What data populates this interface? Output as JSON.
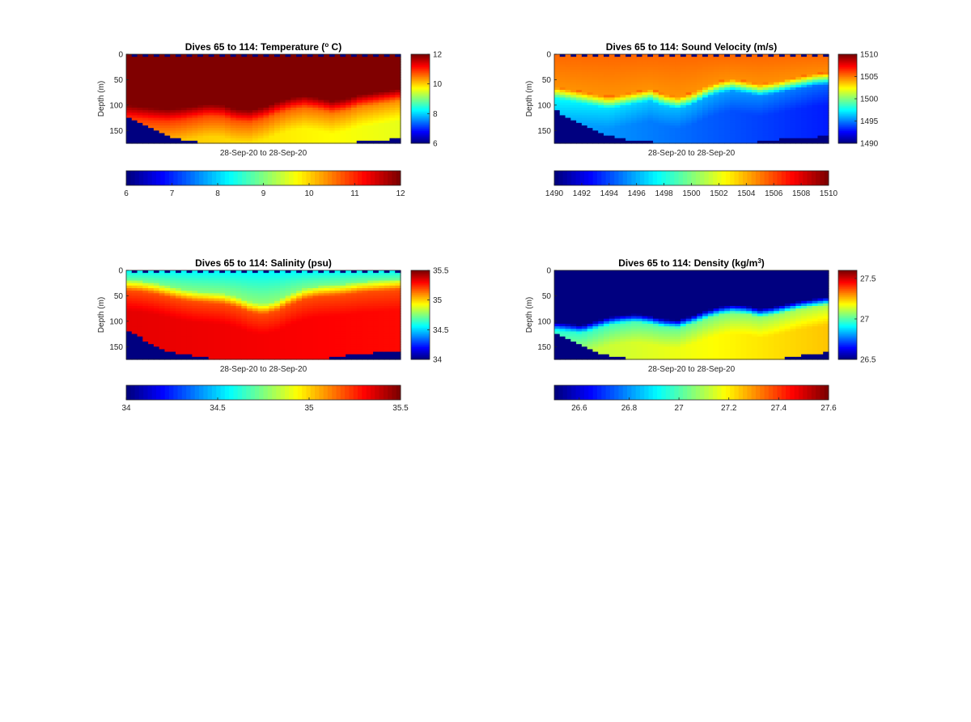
{
  "chart_data": [
    {
      "type": "heatmap",
      "title_parts": [
        "Dives 65 to 114: Temperature (",
        "o",
        " C)"
      ],
      "xlabel": "28-Sep-20 to 28-Sep-20",
      "ylabel": "Depth (m)",
      "ylim": [
        0,
        175
      ],
      "y_ticks": [
        "0",
        "50",
        "100",
        "150"
      ],
      "y_tick_values": [
        0,
        50,
        100,
        150
      ],
      "clim": [
        6,
        12
      ],
      "colorbar_vertical_ticks": [
        "6",
        "8",
        "10",
        "12"
      ],
      "colorbar_vertical_values": [
        6,
        8,
        10,
        12
      ],
      "colorbar_horizontal_ticks": [
        "6",
        "7",
        "8",
        "9",
        "10",
        "11",
        "12"
      ],
      "colorbar_horizontal_values": [
        6,
        7,
        8,
        9,
        10,
        11,
        12
      ],
      "colormap": "jet",
      "profile": {
        "top_layer": [
          12,
          11.8
        ],
        "surface_value": 12,
        "thermocline_depth": [
          112,
          115,
          118,
          120,
          118,
          114,
          110,
          112,
          120,
          122,
          116,
          106,
          98,
          94,
          98,
          104,
          100,
          92,
          88,
          84,
          80
        ],
        "deep_value": [
          10.2,
          9.6
        ],
        "bottom_depth": [
          120,
          135,
          150,
          162,
          168,
          172,
          175,
          175,
          175,
          175,
          175,
          175,
          175,
          175,
          175,
          175,
          175,
          172,
          170,
          168,
          165
        ]
      }
    },
    {
      "type": "heatmap",
      "title_parts": [
        "Dives 65 to 114: Sound Velocity (m/s)"
      ],
      "xlabel": "28-Sep-20 to 28-Sep-20",
      "ylabel": "Depth (m)",
      "ylim": [
        0,
        175
      ],
      "y_ticks": [
        "0",
        "50",
        "100",
        "150"
      ],
      "y_tick_values": [
        0,
        50,
        100,
        150
      ],
      "clim": [
        1490,
        1510
      ],
      "colorbar_vertical_ticks": [
        "1490",
        "1495",
        "1500",
        "1505",
        "1510"
      ],
      "colorbar_vertical_values": [
        1490,
        1495,
        1500,
        1505,
        1510
      ],
      "colorbar_horizontal_ticks": [
        "1490",
        "1492",
        "1494",
        "1496",
        "1498",
        "1500",
        "1502",
        "1504",
        "1506",
        "1508",
        "1510"
      ],
      "colorbar_horizontal_values": [
        1490,
        1492,
        1494,
        1496,
        1498,
        1500,
        1502,
        1504,
        1506,
        1508,
        1510
      ],
      "colormap": "jet",
      "profile": {
        "surface_value": 1505.5,
        "thermocline_depth": [
          75,
          80,
          85,
          90,
          95,
          90,
          85,
          80,
          90,
          95,
          88,
          75,
          65,
          60,
          65,
          70,
          66,
          60,
          55,
          50,
          48
        ],
        "deep_value": [
          1496,
          1493
        ],
        "bottom_depth": [
          108,
          125,
          140,
          152,
          160,
          166,
          170,
          172,
          175,
          175,
          175,
          175,
          175,
          175,
          175,
          172,
          168,
          166,
          165,
          163,
          160
        ]
      }
    },
    {
      "type": "heatmap",
      "title_parts": [
        "Dives 65 to 114: Salinity (psu)"
      ],
      "xlabel": "28-Sep-20 to 28-Sep-20",
      "ylabel": "Depth (m)",
      "ylim": [
        0,
        175
      ],
      "y_ticks": [
        "0",
        "50",
        "100",
        "150"
      ],
      "y_tick_values": [
        0,
        50,
        100,
        150
      ],
      "clim": [
        34,
        35.5
      ],
      "colorbar_vertical_ticks": [
        "34",
        "34.5",
        "35",
        "35.5"
      ],
      "colorbar_vertical_values": [
        34,
        34.5,
        35,
        35.5
      ],
      "colorbar_horizontal_ticks": [
        "34",
        "34.5",
        "35",
        "35.5"
      ],
      "colorbar_horizontal_values": [
        34,
        34.5,
        35,
        35.5
      ],
      "colormap": "jet",
      "profile": {
        "surface_value": 34.55,
        "thermocline_depth": [
          28,
          30,
          34,
          40,
          46,
          50,
          52,
          54,
          60,
          70,
          75,
          68,
          55,
          45,
          40,
          38,
          36,
          32,
          30,
          28,
          26
        ],
        "mid_value": 35.2,
        "deep_value": [
          35.35,
          35.3
        ],
        "bottom_depth": [
          118,
          132,
          148,
          158,
          164,
          168,
          172,
          175,
          175,
          175,
          175,
          175,
          175,
          175,
          175,
          172,
          168,
          165,
          162,
          160,
          158
        ]
      }
    },
    {
      "type": "heatmap",
      "title_parts": [
        "Dives 65 to 114: Density (kg/m",
        "3",
        ")"
      ],
      "xlabel": "28-Sep-20 to 28-Sep-20",
      "ylabel": "Depth (m)",
      "ylim": [
        0,
        175
      ],
      "y_ticks": [
        "0",
        "50",
        "100",
        "150"
      ],
      "y_tick_values": [
        0,
        50,
        100,
        150
      ],
      "clim": [
        26.5,
        27.6
      ],
      "colorbar_vertical_ticks": [
        "26.5",
        "27",
        "27.5"
      ],
      "colorbar_vertical_values": [
        26.5,
        27,
        27.5
      ],
      "colorbar_horizontal_ticks": [
        "26.6",
        "26.8",
        "27",
        "27.2",
        "27.4",
        "27.6"
      ],
      "colorbar_horizontal_values": [
        26.6,
        26.8,
        27,
        27.2,
        27.4,
        27.6
      ],
      "colormap": "jet",
      "profile": {
        "surface_value": 26.5,
        "thermocline_depth": [
          112,
          115,
          118,
          110,
          102,
          98,
          96,
          100,
          106,
          108,
          100,
          90,
          82,
          78,
          80,
          86,
          82,
          76,
          70,
          66,
          62
        ],
        "deep_value": [
          27.05,
          27.2
        ],
        "bottom_depth": [
          120,
          135,
          150,
          162,
          168,
          172,
          175,
          175,
          175,
          175,
          175,
          175,
          175,
          175,
          175,
          175,
          175,
          172,
          168,
          165,
          160
        ]
      }
    }
  ]
}
